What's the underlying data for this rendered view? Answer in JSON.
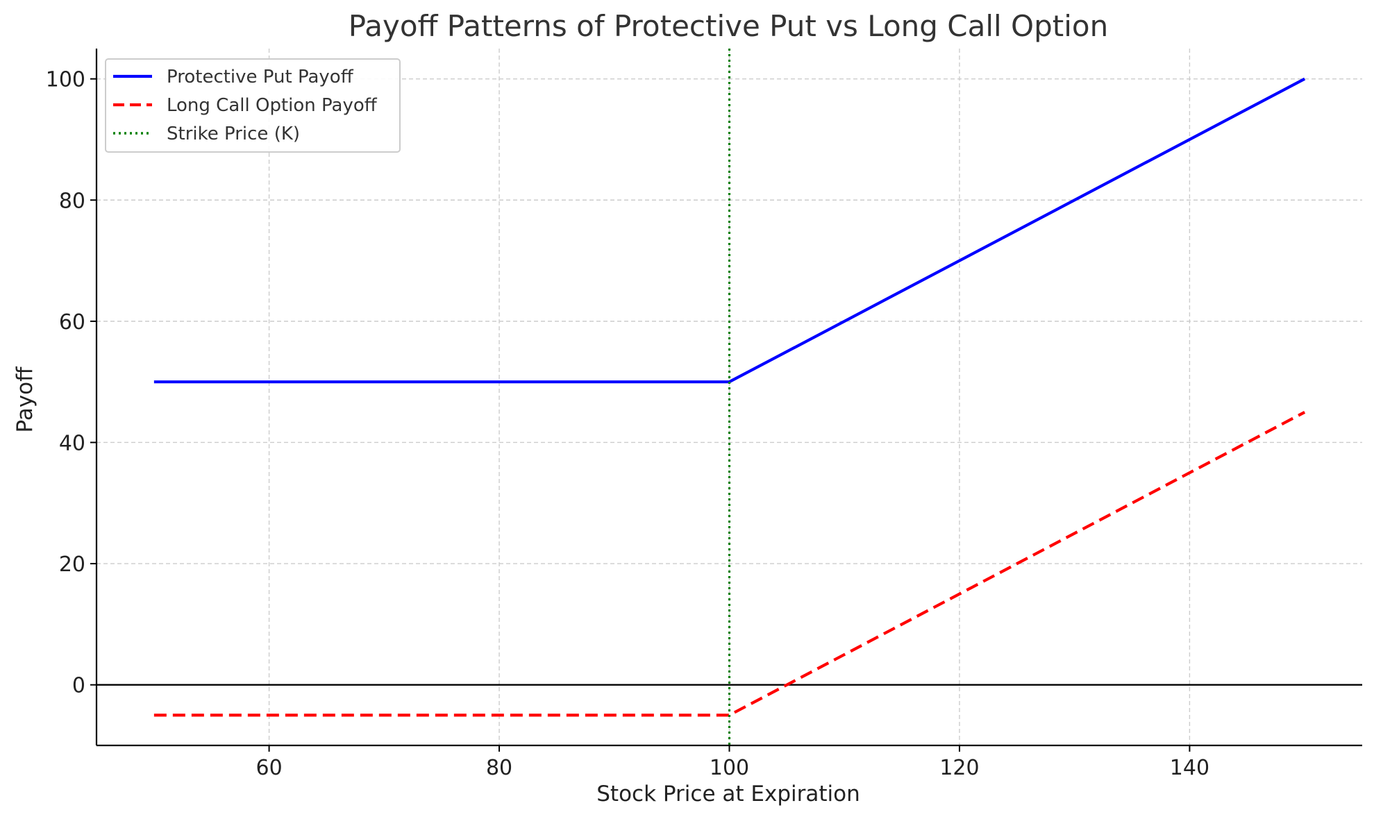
{
  "chart_data": {
    "type": "line",
    "title": "Payoff Patterns of Protective Put vs Long Call Option",
    "xlabel": "Stock Price at Expiration",
    "ylabel": "Payoff",
    "xlim": [
      45,
      155
    ],
    "ylim": [
      -10,
      105
    ],
    "x_ticks": [
      60,
      80,
      100,
      120,
      140
    ],
    "y_ticks": [
      0,
      20,
      40,
      60,
      80,
      100
    ],
    "x_tick_labels": [
      "60",
      "80",
      "100",
      "120",
      "140"
    ],
    "y_tick_labels": [
      "0",
      "20",
      "40",
      "60",
      "80",
      "100"
    ],
    "grid": true,
    "legend_position": "top-left",
    "series": [
      {
        "name": "Protective Put Payoff",
        "color": "#0000ff",
        "style": "solid",
        "x": [
          50,
          100,
          150
        ],
        "y": [
          50,
          50,
          100
        ]
      },
      {
        "name": "Long Call Option Payoff",
        "color": "#ff0000",
        "style": "dashed",
        "x": [
          50,
          100,
          150
        ],
        "y": [
          -5,
          -5,
          45
        ]
      }
    ],
    "reference_lines": [
      {
        "name": "Strike Price (K)",
        "orientation": "vertical",
        "x": 100,
        "color": "#008000",
        "style": "dotted"
      },
      {
        "name": "zero-line",
        "orientation": "horizontal",
        "y": 0,
        "color": "#000000",
        "style": "solid"
      }
    ]
  }
}
